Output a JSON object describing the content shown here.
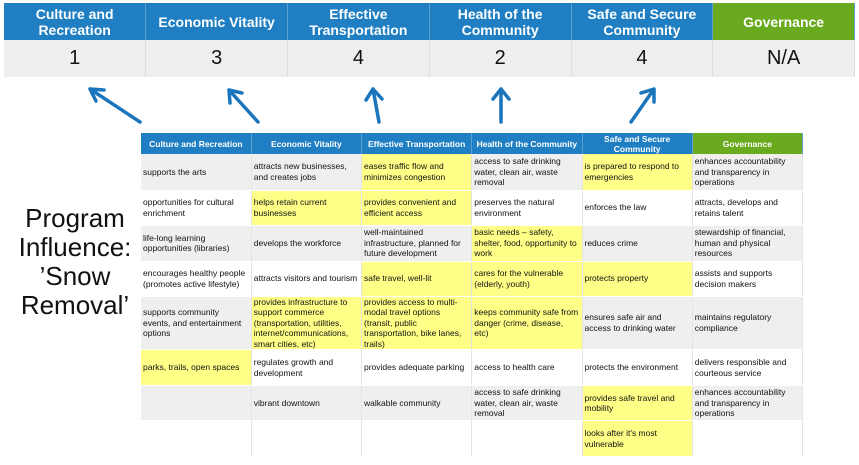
{
  "summary": {
    "categories": [
      {
        "label": "Culture and Recreation",
        "score": "1"
      },
      {
        "label": "Economic Vitality",
        "score": "3"
      },
      {
        "label": "Effective Transportation",
        "score": "4"
      },
      {
        "label": "Health of the Community",
        "score": "2"
      },
      {
        "label": "Safe and Secure Community",
        "score": "4"
      },
      {
        "label": "Governance",
        "score": "N/A"
      }
    ]
  },
  "side_label": {
    "line1": "Program",
    "line2": "Influence:",
    "line3": "’Snow",
    "line4": "Removal’"
  },
  "colors": {
    "header_blue": "#1f7fc2",
    "governance_green": "#6aaa1e",
    "highlight": "#ffff88",
    "row_gray": "#efefef"
  },
  "matrix": {
    "headers": [
      "Culture and Recreation",
      "Economic Vitality",
      "Effective Transportation",
      "Health of the Community",
      "Safe and Secure Community",
      "Governance"
    ],
    "rows": [
      [
        {
          "t": "supports the arts",
          "h": false
        },
        {
          "t": "attracts new businesses, and creates jobs",
          "h": false
        },
        {
          "t": "eases traffic flow and minimizes congestion",
          "h": true
        },
        {
          "t": "access to safe drinking water, clean air, waste removal",
          "h": false
        },
        {
          "t": "is prepared to respond to emergencies",
          "h": true
        },
        {
          "t": "enhances accountability and transparency in operations",
          "h": false
        }
      ],
      [
        {
          "t": "opportunities for cultural enrichment",
          "h": false
        },
        {
          "t": "helps retain current businesses",
          "h": true
        },
        {
          "t": "provides convenient and efficient access",
          "h": true
        },
        {
          "t": "preserves the natural environment",
          "h": false
        },
        {
          "t": "enforces the law",
          "h": false
        },
        {
          "t": "attracts, develops and retains talent",
          "h": false
        }
      ],
      [
        {
          "t": "life-long learning opportunities (libraries)",
          "h": false
        },
        {
          "t": "develops the workforce",
          "h": false
        },
        {
          "t": "well-maintained infrastructure, planned for future development",
          "h": false
        },
        {
          "t": "basic needs – safety, shelter, food, opportunity to work",
          "h": true
        },
        {
          "t": "reduces crime",
          "h": false
        },
        {
          "t": "stewardship of financial, human and physical resources",
          "h": false
        }
      ],
      [
        {
          "t": "encourages healthy people (promotes active lifestyle)",
          "h": false
        },
        {
          "t": "attracts visitors and tourism",
          "h": false
        },
        {
          "t": "safe travel, well-lit",
          "h": true
        },
        {
          "t": "cares for the vulnerable (elderly, youth)",
          "h": true
        },
        {
          "t": "protects property",
          "h": true
        },
        {
          "t": "assists and supports decision makers",
          "h": false
        }
      ],
      [
        {
          "t": "supports community events, and entertainment options",
          "h": false
        },
        {
          "t": "provides infrastructure to support commerce (transportation, utilities, internet/communications, smart cities, etc)",
          "h": true
        },
        {
          "t": "provides access to multi-modal travel options (transit, public transportation, bike lanes, trails)",
          "h": true
        },
        {
          "t": "keeps community safe from danger (crime, disease, etc)",
          "h": true
        },
        {
          "t": "ensures safe air and access to drinking water",
          "h": false
        },
        {
          "t": "maintains regulatory compliance",
          "h": false
        }
      ],
      [
        {
          "t": "parks, trails, open spaces",
          "h": true
        },
        {
          "t": "regulates growth and development",
          "h": false
        },
        {
          "t": "provides adequate parking",
          "h": false
        },
        {
          "t": "access to health care",
          "h": false
        },
        {
          "t": "protects the environment",
          "h": false
        },
        {
          "t": "delivers responsible and courteous service",
          "h": false
        }
      ],
      [
        {
          "t": "",
          "h": false
        },
        {
          "t": "vibrant downtown",
          "h": false
        },
        {
          "t": "walkable community",
          "h": false
        },
        {
          "t": "access to safe drinking water, clean air, waste removal",
          "h": false
        },
        {
          "t": "provides safe travel and mobility",
          "h": true
        },
        {
          "t": "enhances accountability and transparency in operations",
          "h": false
        }
      ],
      [
        {
          "t": "",
          "h": false
        },
        {
          "t": "",
          "h": false
        },
        {
          "t": "",
          "h": false
        },
        {
          "t": "",
          "h": false
        },
        {
          "t": "looks after it's most vulnerable",
          "h": true
        },
        {
          "t": "",
          "h": false
        }
      ]
    ]
  }
}
